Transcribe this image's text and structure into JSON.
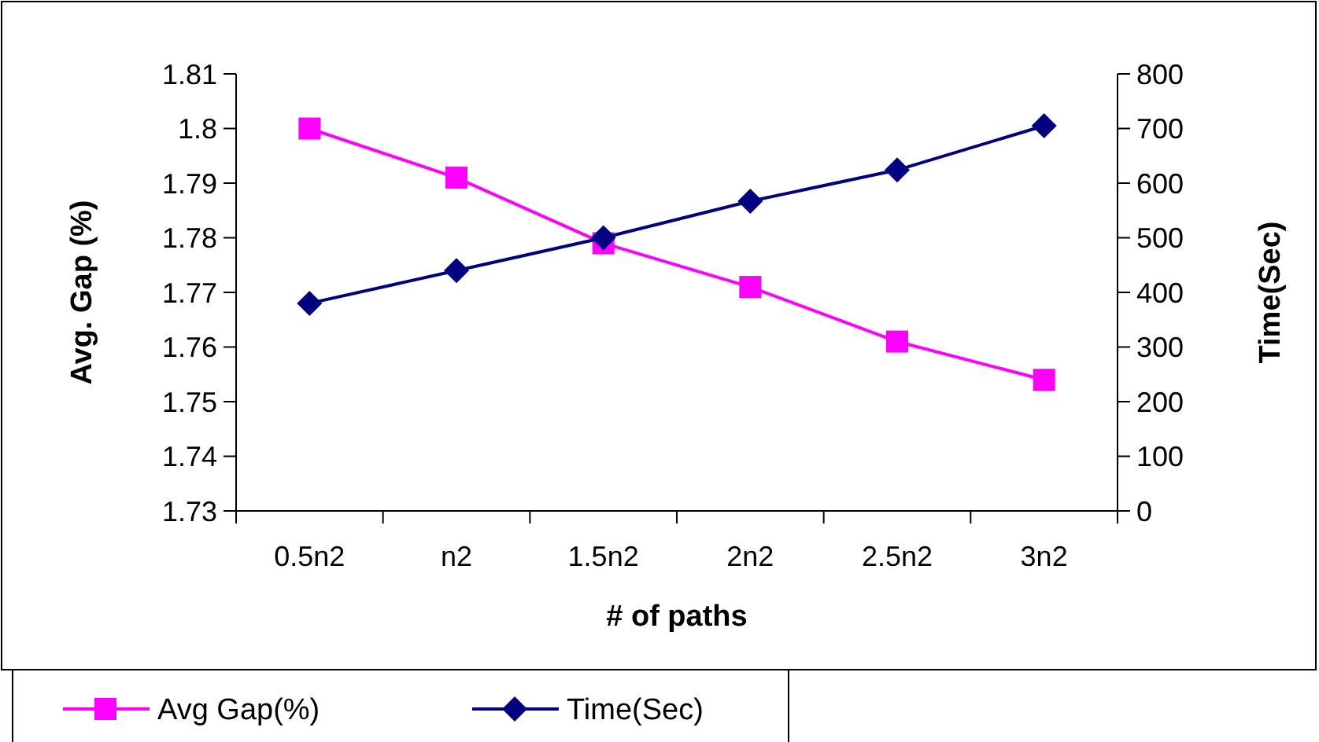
{
  "chart_data": {
    "type": "line",
    "xlabel": "# of paths",
    "ylabel": "Avg. Gap (%)",
    "y2label": "Time(Sec)",
    "categories": [
      "0.5n2",
      "n2",
      "1.5n2",
      "2n2",
      "2.5n2",
      "3n2"
    ],
    "series": [
      {
        "name": "Avg Gap(%)",
        "color": "#ff00ff",
        "marker": "square",
        "values": [
          1.8,
          1.791,
          1.779,
          1.771,
          1.761,
          1.754
        ]
      },
      {
        "name": "Time(Sec)",
        "color": "#000080",
        "marker": "diamond",
        "axis": "y2",
        "values": [
          380,
          440,
          500,
          567,
          624,
          705
        ]
      }
    ],
    "ylim": [
      1.73,
      1.81
    ],
    "yticks": [
      1.73,
      1.74,
      1.75,
      1.76,
      1.77,
      1.78,
      1.79,
      1.8,
      1.81
    ],
    "y2lim": [
      0,
      800
    ],
    "y2ticks": [
      0,
      100,
      200,
      300,
      400,
      500,
      600,
      700,
      800
    ],
    "grid": false,
    "legend": "bottom left",
    "line_style": "solid"
  }
}
